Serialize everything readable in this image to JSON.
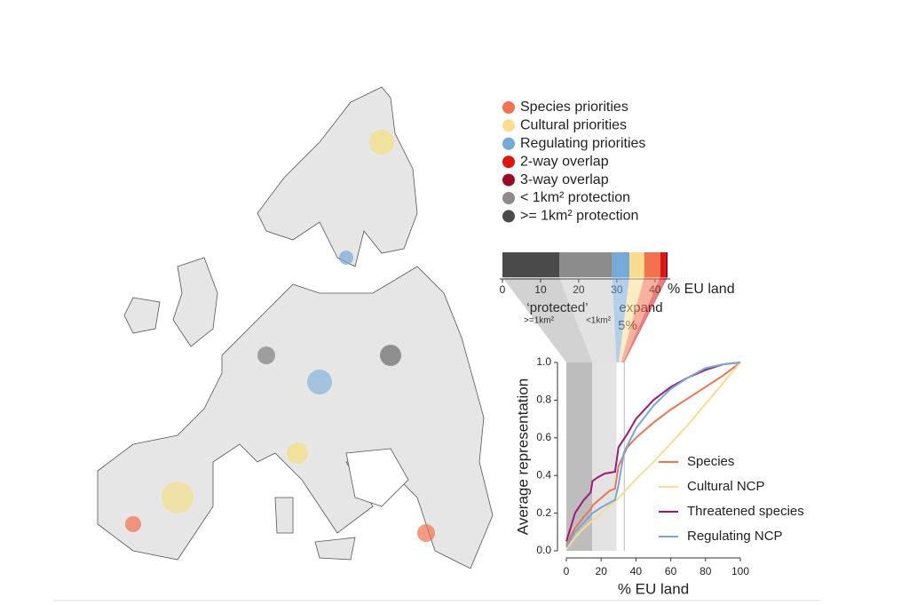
{
  "chart_data": [
    {
      "type": "bar",
      "orientation": "horizontal",
      "stacked": true,
      "series": [
        {
          "name": "Species priorities",
          "color": "#f2714f",
          "values": [
            4.2
          ]
        },
        {
          "name": "Cultural priorities",
          "color": "#f9dc8e",
          "values": [
            3.9
          ]
        },
        {
          "name": "Regulating priorities",
          "color": "#74aad8",
          "values": [
            4.5
          ]
        },
        {
          "name": "2-way overlap",
          "color": "#e0140e",
          "values": [
            1.4
          ]
        },
        {
          "name": "3-way overlap",
          "color": "#9c0a26",
          "values": [
            0.5
          ]
        },
        {
          "name": "< 1km² protection",
          "color": "#8c8c8c",
          "values": [
            13.9
          ]
        },
        {
          "name": ">= 1km² protection",
          "color": "#4a4a4a",
          "values": [
            14.9
          ]
        }
      ],
      "xlim": [
        0,
        44
      ],
      "xticks": [
        0,
        10,
        20,
        30,
        40
      ],
      "x_label": "% EU land",
      "annotations": [
        "‘protected’",
        ">=1km²",
        "<1km²",
        "expand",
        "5%"
      ]
    },
    {
      "type": "line",
      "x_label": "% EU land",
      "y_label": "Average representation",
      "xlim": [
        0,
        100
      ],
      "xticks": [
        0,
        20,
        40,
        60,
        80,
        100
      ],
      "ylim": [
        0,
        1
      ],
      "yticks": [
        {
          "value": 0,
          "label": "0.0"
        },
        0.2,
        0.4,
        0.6,
        0.8,
        {
          "value": 1,
          "label": "1.0"
        }
      ],
      "regions": [
        {
          "xlim": [
            0,
            14.9
          ],
          "color": "#bdbdbd"
        },
        {
          "xlim": [
            14.9,
            28.8
          ],
          "color": "#e3e3e3"
        }
      ],
      "vline": 33.3,
      "series": [
        {
          "name": "Species",
          "color": "#ee7350",
          "x": [
            0,
            5,
            10,
            14,
            15,
            20,
            25,
            28,
            30,
            35,
            40,
            50,
            60,
            70,
            80,
            90,
            100
          ],
          "values": [
            0.03,
            0.12,
            0.18,
            0.22,
            0.24,
            0.28,
            0.32,
            0.33,
            0.45,
            0.55,
            0.6,
            0.68,
            0.75,
            0.81,
            0.87,
            0.93,
            1
          ]
        },
        {
          "name": "Cultural NCP",
          "color": "#f9dc90",
          "x": [
            0,
            5,
            10,
            15,
            20,
            25,
            29,
            35,
            40,
            50,
            60,
            70,
            80,
            90,
            100
          ],
          "values": [
            0.01,
            0.07,
            0.12,
            0.16,
            0.2,
            0.24,
            0.27,
            0.33,
            0.38,
            0.47,
            0.57,
            0.67,
            0.78,
            0.89,
            1
          ]
        },
        {
          "name": "Threatened species",
          "color": "#a0197a",
          "x": [
            0,
            5,
            10,
            14,
            15,
            18,
            22,
            28,
            30,
            35,
            40,
            50,
            60,
            70,
            80,
            90,
            100
          ],
          "values": [
            0.05,
            0.2,
            0.27,
            0.31,
            0.37,
            0.39,
            0.41,
            0.42,
            0.55,
            0.62,
            0.7,
            0.8,
            0.87,
            0.92,
            0.96,
            0.99,
            1
          ]
        },
        {
          "name": "Regulating NCP",
          "color": "#74a8d6",
          "x": [
            0,
            5,
            10,
            14,
            15,
            20,
            28,
            30,
            33,
            40,
            50,
            60,
            70,
            80,
            90,
            100
          ],
          "values": [
            0.02,
            0.1,
            0.15,
            0.19,
            0.2,
            0.23,
            0.27,
            0.35,
            0.52,
            0.65,
            0.77,
            0.86,
            0.92,
            0.97,
            0.99,
            1
          ]
        }
      ]
    }
  ]
}
